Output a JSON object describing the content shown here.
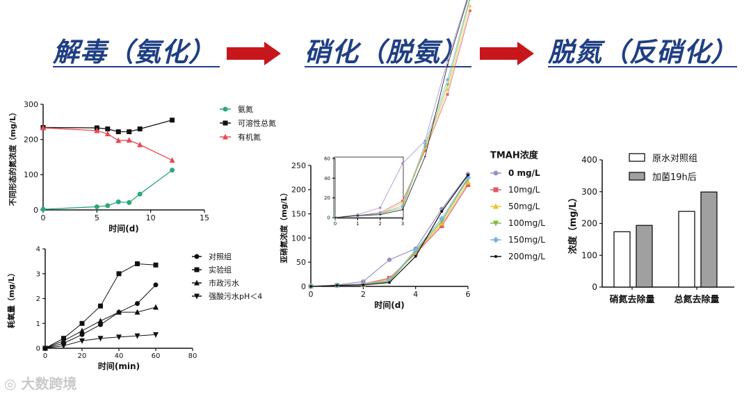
{
  "header": {
    "stage1": "解毒（氨化）",
    "stage2": "硝化（脱氨）",
    "stage3": "脱氮（反硝化）",
    "title_color": "#1f3f84",
    "arrow_color": "#c8161d"
  },
  "watermark": "大数跨境",
  "chart_data": [
    {
      "type": "line",
      "xlabel": "时间(d)",
      "ylabel": "不同形态的氮浓度（mg/L）",
      "xlim": [
        0,
        15
      ],
      "ylim": [
        0,
        300
      ],
      "xticks": [
        0,
        5,
        10,
        15
      ],
      "yticks": [
        0,
        100,
        200,
        300
      ],
      "legend_position": "right",
      "series": [
        {
          "name": "氨氮",
          "color": "#2aa876",
          "marker": "circle",
          "x": [
            0,
            5,
            6,
            7,
            8,
            9,
            12
          ],
          "y": [
            2,
            9,
            12,
            23,
            21,
            45,
            113
          ]
        },
        {
          "name": "可溶性总氮",
          "color": "#111111",
          "marker": "square",
          "x": [
            0,
            5,
            6,
            7,
            8,
            9,
            12
          ],
          "y": [
            234,
            233,
            230,
            222,
            222,
            230,
            255
          ]
        },
        {
          "name": "有机氮",
          "color": "#e8484f",
          "marker": "triangle",
          "x": [
            0,
            5,
            6,
            7,
            8,
            9,
            12
          ],
          "y": [
            233,
            225,
            216,
            197,
            198,
            185,
            141
          ]
        }
      ]
    },
    {
      "type": "line",
      "xlabel": "时间(min)",
      "ylabel": "耗氧量（mg/L）",
      "xlim": [
        0,
        80
      ],
      "ylim": [
        0,
        4
      ],
      "xticks": [
        0,
        20,
        40,
        60,
        80
      ],
      "yticks": [
        0,
        1,
        2,
        3,
        4
      ],
      "legend_position": "right",
      "series": [
        {
          "name": "对照组",
          "color": "#111111",
          "marker": "circle",
          "x": [
            0,
            10,
            20,
            30,
            40,
            50,
            60
          ],
          "y": [
            0,
            0.2,
            0.55,
            0.95,
            1.45,
            1.8,
            2.55
          ]
        },
        {
          "name": "实验组",
          "color": "#111111",
          "marker": "square",
          "x": [
            0,
            10,
            20,
            30,
            40,
            50,
            60
          ],
          "y": [
            0,
            0.4,
            1.0,
            1.7,
            3.0,
            3.4,
            3.35
          ]
        },
        {
          "name": "市政污水",
          "color": "#111111",
          "marker": "triangle",
          "x": [
            0,
            10,
            20,
            30,
            40,
            50,
            60
          ],
          "y": [
            0,
            0.3,
            0.7,
            1.1,
            1.45,
            1.45,
            1.65
          ]
        },
        {
          "name": "强酸污水pH＜4",
          "color": "#111111",
          "marker": "triangle-down",
          "x": [
            0,
            10,
            20,
            30,
            40,
            50,
            60
          ],
          "y": [
            0,
            0.1,
            0.3,
            0.4,
            0.45,
            0.5,
            0.55
          ]
        }
      ]
    },
    {
      "type": "line",
      "xlabel": "时间(d)",
      "ylabel": "亚硝氮浓度（mg/L）",
      "xlim": [
        0,
        6
      ],
      "ylim": [
        0,
        250
      ],
      "xticks": [
        0,
        2,
        4,
        6
      ],
      "yticks": [
        0,
        50,
        100,
        150,
        200,
        250
      ],
      "legend_title": "TMAH浓度",
      "legend_position": "right",
      "series": [
        {
          "name": "0 mg/L",
          "color": "#9b8fc8",
          "marker": "circle",
          "x": [
            0,
            1,
            2,
            3,
            4,
            5,
            6
          ],
          "y": [
            0,
            3,
            10,
            55,
            78,
            160,
            232
          ]
        },
        {
          "name": "10mg/L",
          "color": "#e05a6a",
          "marker": "square",
          "x": [
            0,
            1,
            2,
            3,
            4,
            5,
            6
          ],
          "y": [
            0,
            2,
            5,
            17,
            68,
            125,
            210
          ]
        },
        {
          "name": "50mg/L",
          "color": "#f2c12e",
          "marker": "triangle",
          "x": [
            0,
            1,
            2,
            3,
            4,
            5,
            6
          ],
          "y": [
            0,
            2,
            4,
            15,
            70,
            130,
            215
          ]
        },
        {
          "name": "100mg/L",
          "color": "#7dba3a",
          "marker": "triangle-down",
          "x": [
            0,
            1,
            2,
            3,
            4,
            5,
            6
          ],
          "y": [
            0,
            2,
            4,
            10,
            72,
            135,
            222
          ]
        },
        {
          "name": "150mg/L",
          "color": "#7bb6e2",
          "marker": "diamond",
          "x": [
            0,
            1,
            2,
            3,
            4,
            5,
            6
          ],
          "y": [
            0,
            2,
            4,
            12,
            75,
            140,
            225
          ]
        },
        {
          "name": "200mg/L",
          "color": "#111111",
          "marker": "dot",
          "x": [
            0,
            1,
            2,
            3,
            4,
            5,
            6
          ],
          "y": [
            0,
            2,
            3,
            8,
            62,
            155,
            230
          ]
        }
      ],
      "inset": {
        "xlim": [
          0,
          3
        ],
        "ylim": [
          0,
          60
        ],
        "xticks": [
          0,
          1,
          2,
          3
        ],
        "yticks": [
          0,
          20,
          40,
          60
        ]
      }
    },
    {
      "type": "bar",
      "ylabel": "浓度（mg/L）",
      "ylim": [
        0,
        400
      ],
      "yticks": [
        0,
        100,
        200,
        300,
        400
      ],
      "categories": [
        "硝氮去除量",
        "总氮去除量"
      ],
      "legend_position": "top-right",
      "series": [
        {
          "name": "原水对照组",
          "color": "#ffffff",
          "values": [
            174,
            238
          ]
        },
        {
          "name": "加菌19h后",
          "color": "#a0a0a0",
          "values": [
            194,
            299
          ]
        }
      ]
    }
  ]
}
